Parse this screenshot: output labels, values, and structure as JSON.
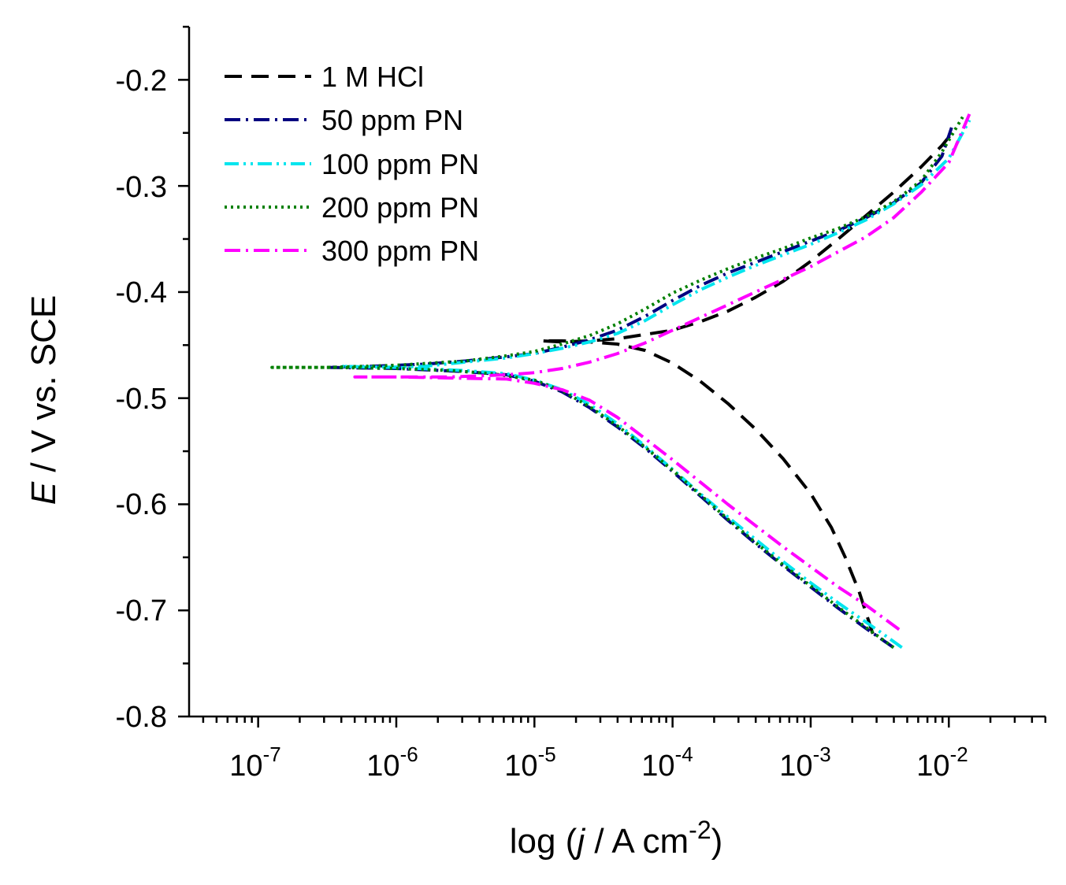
{
  "chart_data": {
    "type": "line",
    "xscale": "log",
    "x_range_log10": [
      -7.5,
      -1.3
    ],
    "ylim": [
      -0.8,
      -0.15
    ],
    "xlabel": {
      "prefix": "log (",
      "italic": "j",
      "mid": " / A cm",
      "sup": "-2",
      "suffix": ")"
    },
    "ylabel": {
      "italic": "E",
      "rest": " / V vs. SCE"
    },
    "x_ticks": [
      {
        "log": -7,
        "base": "10",
        "exp": "-7"
      },
      {
        "log": -6,
        "base": "10",
        "exp": "-6"
      },
      {
        "log": -5,
        "base": "10",
        "exp": "-5"
      },
      {
        "log": -4,
        "base": "10",
        "exp": "-4"
      },
      {
        "log": -3,
        "base": "10",
        "exp": "-3"
      },
      {
        "log": -2,
        "base": "10",
        "exp": "-2"
      }
    ],
    "y_ticks": [
      {
        "value": -0.2,
        "label": "-0.2"
      },
      {
        "value": -0.3,
        "label": "-0.3"
      },
      {
        "value": -0.4,
        "label": "-0.4"
      },
      {
        "value": -0.5,
        "label": "-0.5"
      },
      {
        "value": -0.6,
        "label": "-0.6"
      },
      {
        "value": -0.7,
        "label": "-0.7"
      },
      {
        "value": -0.8,
        "label": "-0.8"
      }
    ],
    "legend_position": "top-left",
    "series": [
      {
        "name": "1 M HCl",
        "color": "#000000",
        "style": "dash",
        "points": [
          [
            -2.55,
            -0.722
          ],
          [
            -2.65,
            -0.682
          ],
          [
            -2.75,
            -0.65
          ],
          [
            -2.85,
            -0.622
          ],
          [
            -3.0,
            -0.59
          ],
          [
            -3.2,
            -0.557
          ],
          [
            -3.4,
            -0.529
          ],
          [
            -3.6,
            -0.505
          ],
          [
            -3.8,
            -0.484
          ],
          [
            -4.0,
            -0.467
          ],
          [
            -4.2,
            -0.455
          ],
          [
            -4.4,
            -0.449
          ],
          [
            -4.6,
            -0.447
          ],
          [
            -4.8,
            -0.446
          ],
          [
            -4.95,
            -0.446
          ],
          [
            -4.8,
            -0.447
          ],
          [
            -4.6,
            -0.446
          ],
          [
            -4.4,
            -0.444
          ],
          [
            -4.2,
            -0.44
          ],
          [
            -4.0,
            -0.436
          ],
          [
            -3.8,
            -0.428
          ],
          [
            -3.6,
            -0.418
          ],
          [
            -3.4,
            -0.405
          ],
          [
            -3.2,
            -0.39
          ],
          [
            -3.0,
            -0.371
          ],
          [
            -2.8,
            -0.35
          ],
          [
            -2.6,
            -0.328
          ],
          [
            -2.4,
            -0.306
          ],
          [
            -2.2,
            -0.282
          ],
          [
            -2.05,
            -0.262
          ],
          [
            -1.95,
            -0.246
          ]
        ]
      },
      {
        "name": "50 ppm PN",
        "color": "#000080",
        "style": "dashdot",
        "points": [
          [
            -2.4,
            -0.735
          ],
          [
            -2.6,
            -0.717
          ],
          [
            -2.8,
            -0.698
          ],
          [
            -3.0,
            -0.678
          ],
          [
            -3.2,
            -0.658
          ],
          [
            -3.4,
            -0.637
          ],
          [
            -3.6,
            -0.615
          ],
          [
            -3.8,
            -0.592
          ],
          [
            -4.0,
            -0.569
          ],
          [
            -4.2,
            -0.547
          ],
          [
            -4.4,
            -0.527
          ],
          [
            -4.6,
            -0.509
          ],
          [
            -4.8,
            -0.494
          ],
          [
            -5.0,
            -0.484
          ],
          [
            -5.2,
            -0.478
          ],
          [
            -5.5,
            -0.475
          ],
          [
            -6.0,
            -0.472
          ],
          [
            -6.5,
            -0.471
          ],
          [
            -6.2,
            -0.47
          ],
          [
            -5.8,
            -0.468
          ],
          [
            -5.5,
            -0.465
          ],
          [
            -5.2,
            -0.461
          ],
          [
            -5.0,
            -0.458
          ],
          [
            -4.8,
            -0.452
          ],
          [
            -4.6,
            -0.445
          ],
          [
            -4.4,
            -0.436
          ],
          [
            -4.2,
            -0.423
          ],
          [
            -4.0,
            -0.408
          ],
          [
            -3.8,
            -0.394
          ],
          [
            -3.6,
            -0.382
          ],
          [
            -3.4,
            -0.372
          ],
          [
            -3.2,
            -0.362
          ],
          [
            -3.0,
            -0.352
          ],
          [
            -2.8,
            -0.342
          ],
          [
            -2.6,
            -0.33
          ],
          [
            -2.4,
            -0.316
          ],
          [
            -2.2,
            -0.297
          ],
          [
            -2.05,
            -0.272
          ],
          [
            -1.98,
            -0.245
          ]
        ]
      },
      {
        "name": "100 ppm PN",
        "color": "#00e5ee",
        "style": "dashdotdot",
        "points": [
          [
            -2.34,
            -0.735
          ],
          [
            -2.5,
            -0.72
          ],
          [
            -2.8,
            -0.693
          ],
          [
            -3.0,
            -0.674
          ],
          [
            -3.2,
            -0.654
          ],
          [
            -3.4,
            -0.633
          ],
          [
            -3.6,
            -0.612
          ],
          [
            -3.8,
            -0.59
          ],
          [
            -4.0,
            -0.567
          ],
          [
            -4.2,
            -0.545
          ],
          [
            -4.4,
            -0.524
          ],
          [
            -4.6,
            -0.506
          ],
          [
            -4.8,
            -0.492
          ],
          [
            -5.0,
            -0.483
          ],
          [
            -5.2,
            -0.477
          ],
          [
            -5.5,
            -0.474
          ],
          [
            -6.0,
            -0.471
          ],
          [
            -6.4,
            -0.47
          ],
          [
            -6.1,
            -0.471
          ],
          [
            -5.8,
            -0.47
          ],
          [
            -5.5,
            -0.466
          ],
          [
            -5.2,
            -0.462
          ],
          [
            -5.0,
            -0.458
          ],
          [
            -4.8,
            -0.453
          ],
          [
            -4.6,
            -0.447
          ],
          [
            -4.4,
            -0.439
          ],
          [
            -4.2,
            -0.427
          ],
          [
            -4.0,
            -0.412
          ],
          [
            -3.8,
            -0.398
          ],
          [
            -3.6,
            -0.386
          ],
          [
            -3.4,
            -0.375
          ],
          [
            -3.2,
            -0.365
          ],
          [
            -3.0,
            -0.355
          ],
          [
            -2.8,
            -0.344
          ],
          [
            -2.6,
            -0.332
          ],
          [
            -2.4,
            -0.317
          ],
          [
            -2.2,
            -0.299
          ],
          [
            -2.0,
            -0.274
          ],
          [
            -1.85,
            -0.238
          ]
        ]
      },
      {
        "name": "200 ppm PN",
        "color": "#008000",
        "style": "dot",
        "points": [
          [
            -2.4,
            -0.735
          ],
          [
            -2.6,
            -0.716
          ],
          [
            -2.8,
            -0.697
          ],
          [
            -3.0,
            -0.677
          ],
          [
            -3.2,
            -0.657
          ],
          [
            -3.4,
            -0.636
          ],
          [
            -3.6,
            -0.614
          ],
          [
            -3.8,
            -0.591
          ],
          [
            -4.0,
            -0.568
          ],
          [
            -4.2,
            -0.546
          ],
          [
            -4.4,
            -0.526
          ],
          [
            -4.6,
            -0.508
          ],
          [
            -4.8,
            -0.493
          ],
          [
            -5.0,
            -0.483
          ],
          [
            -5.3,
            -0.477
          ],
          [
            -5.6,
            -0.474
          ],
          [
            -6.0,
            -0.472
          ],
          [
            -6.5,
            -0.471
          ],
          [
            -6.9,
            -0.471
          ],
          [
            -6.5,
            -0.471
          ],
          [
            -6.0,
            -0.469
          ],
          [
            -5.5,
            -0.465
          ],
          [
            -5.2,
            -0.46
          ],
          [
            -5.0,
            -0.456
          ],
          [
            -4.8,
            -0.449
          ],
          [
            -4.6,
            -0.441
          ],
          [
            -4.4,
            -0.43
          ],
          [
            -4.2,
            -0.416
          ],
          [
            -4.0,
            -0.401
          ],
          [
            -3.8,
            -0.389
          ],
          [
            -3.6,
            -0.378
          ],
          [
            -3.4,
            -0.368
          ],
          [
            -3.2,
            -0.359
          ],
          [
            -3.0,
            -0.349
          ],
          [
            -2.8,
            -0.34
          ],
          [
            -2.6,
            -0.329
          ],
          [
            -2.4,
            -0.315
          ],
          [
            -2.2,
            -0.295
          ],
          [
            -2.05,
            -0.268
          ],
          [
            -1.9,
            -0.235
          ]
        ]
      },
      {
        "name": "300 ppm PN",
        "color": "#ff00ff",
        "style": "dashdot",
        "points": [
          [
            -2.36,
            -0.718
          ],
          [
            -2.6,
            -0.695
          ],
          [
            -2.8,
            -0.678
          ],
          [
            -3.0,
            -0.659
          ],
          [
            -3.2,
            -0.64
          ],
          [
            -3.4,
            -0.62
          ],
          [
            -3.6,
            -0.6
          ],
          [
            -3.8,
            -0.579
          ],
          [
            -4.0,
            -0.558
          ],
          [
            -4.2,
            -0.538
          ],
          [
            -4.4,
            -0.518
          ],
          [
            -4.6,
            -0.502
          ],
          [
            -4.8,
            -0.492
          ],
          [
            -5.0,
            -0.486
          ],
          [
            -5.2,
            -0.482
          ],
          [
            -5.6,
            -0.481
          ],
          [
            -6.0,
            -0.48
          ],
          [
            -6.3,
            -0.48
          ],
          [
            -6.0,
            -0.48
          ],
          [
            -5.6,
            -0.48
          ],
          [
            -5.2,
            -0.478
          ],
          [
            -5.0,
            -0.476
          ],
          [
            -4.8,
            -0.472
          ],
          [
            -4.6,
            -0.466
          ],
          [
            -4.4,
            -0.458
          ],
          [
            -4.2,
            -0.448
          ],
          [
            -4.0,
            -0.436
          ],
          [
            -3.8,
            -0.424
          ],
          [
            -3.6,
            -0.412
          ],
          [
            -3.4,
            -0.4
          ],
          [
            -3.2,
            -0.388
          ],
          [
            -3.0,
            -0.376
          ],
          [
            -2.8,
            -0.362
          ],
          [
            -2.6,
            -0.348
          ],
          [
            -2.4,
            -0.33
          ],
          [
            -2.2,
            -0.306
          ],
          [
            -2.0,
            -0.278
          ],
          [
            -1.85,
            -0.232
          ]
        ]
      }
    ]
  }
}
